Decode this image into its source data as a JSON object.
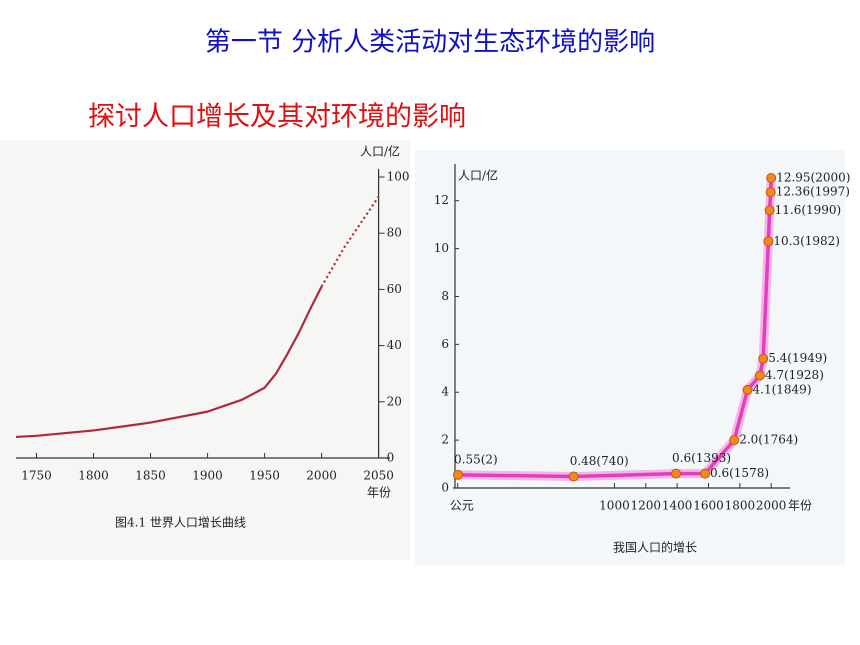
{
  "title": "第一节  分析人类活动对生态环境的影响",
  "subtitle": "探讨人口增长及其对环境的影响",
  "chart_data": [
    {
      "type": "line",
      "caption": "图4.1   世界人口增长曲线",
      "ylabel": "人口/亿",
      "xlabel": "年份",
      "y_axis_side": "right",
      "x": [
        1732,
        1750,
        1800,
        1850,
        1900,
        1930,
        1950,
        1960,
        1970,
        1980,
        1990,
        2000,
        2010,
        2020,
        2030,
        2040,
        2050
      ],
      "series": [
        {
          "color": "#b0283c",
          "style": "solid",
          "values": [
            7.5,
            7.9,
            9.8,
            12.6,
            16.5,
            20.7,
            25,
            30,
            37,
            44.5,
            53,
            61,
            null,
            null,
            null,
            null,
            null
          ]
        },
        {
          "color": "#b0283c",
          "style": "dotted",
          "values": [
            null,
            null,
            null,
            null,
            null,
            null,
            null,
            null,
            null,
            null,
            null,
            61,
            68,
            75,
            81,
            87,
            93
          ]
        }
      ],
      "xlim": [
        1732,
        2060
      ],
      "xticks": [
        1750,
        1800,
        1850,
        1900,
        1950,
        2000,
        2050
      ],
      "ylim": [
        0,
        100
      ],
      "yticks": [
        0,
        20,
        40,
        60,
        80,
        100
      ]
    },
    {
      "type": "line",
      "caption": "我国人口的增长",
      "ylabel": "人口/亿",
      "xlabel": "年份",
      "y_axis_side": "left",
      "markers": true,
      "x": [
        2,
        740,
        1393,
        1578,
        1764,
        1849,
        1928,
        1949,
        1982,
        1990,
        1997,
        2000
      ],
      "series": [
        {
          "color": "#e040c0",
          "marker_color": "#f08a1c",
          "style": "solid",
          "values": [
            0.55,
            0.48,
            0.6,
            0.6,
            2.0,
            4.1,
            4.7,
            5.4,
            10.3,
            11.6,
            12.36,
            12.95
          ],
          "value_labels": [
            "0.55(2)",
            "0.48(740)",
            "0.6(1393)",
            "0.6(1578)",
            "2.0(1764)",
            "4.1(1849)",
            "4.7(1928)",
            "5.4(1949)",
            "10.3(1982)",
            "11.6(1990)",
            "12.36(1997)",
            "12.95(2000)"
          ]
        }
      ],
      "xlim": [
        -30,
        2120
      ],
      "xticks": [
        {
          "value": 0,
          "label": "公元"
        },
        1000,
        1200,
        1400,
        1600,
        1800,
        2000
      ],
      "ylim": [
        0,
        13.2
      ],
      "yticks": [
        0,
        2,
        4,
        6,
        8,
        10,
        12
      ]
    }
  ]
}
